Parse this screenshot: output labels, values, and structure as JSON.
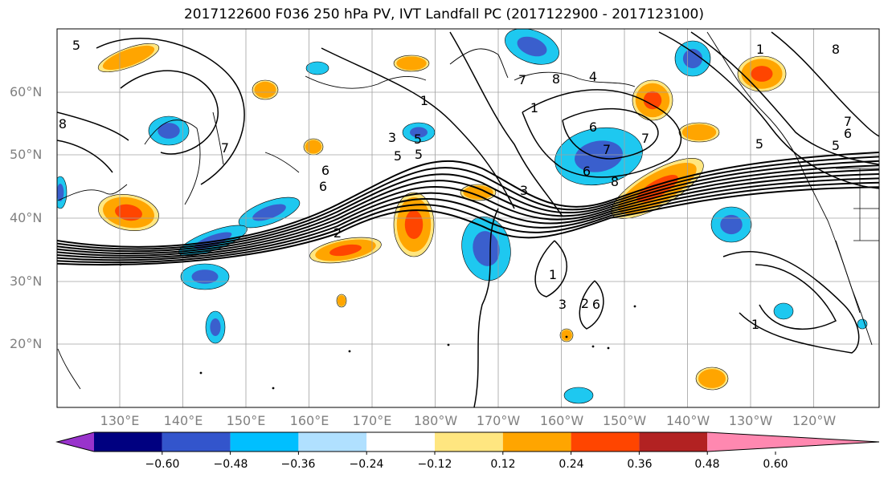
{
  "title": "2017122600 F036 250 hPa PV, IVT Landfall PC (2017122900 - 2017123100)",
  "lat_labels": [
    "60°N",
    "50°N",
    "40°N",
    "30°N",
    "20°N"
  ],
  "lon_labels": [
    "130°E",
    "140°E",
    "150°E",
    "160°E",
    "170°E",
    "180°W",
    "170°W",
    "160°W",
    "150°W",
    "140°W",
    "130°W",
    "120°W"
  ],
  "contour_labels": [
    "5",
    "8",
    "7",
    "6",
    "5",
    "1",
    "3",
    "5",
    "4",
    "6",
    "7",
    "8",
    "1",
    "7",
    "6",
    "5",
    "2",
    "3",
    "6",
    "7",
    "8",
    "3",
    "5",
    "1",
    "6",
    "7",
    "6",
    "5",
    "8",
    "1",
    "2",
    "1"
  ],
  "colorbar": {
    "ticks": [
      "−0.60",
      "−0.48",
      "−0.36",
      "−0.24",
      "−0.12",
      "0.12",
      "0.24",
      "0.36",
      "0.48",
      "0.60"
    ],
    "colors": [
      "#9933cc",
      "#000080",
      "#3355cc",
      "#00bfff",
      "#b0e0ff",
      "#ffffff",
      "#ffe680",
      "#ffa500",
      "#ff4500",
      "#b22222",
      "#ff88b0"
    ]
  },
  "colors": {
    "cyan": "#1ec8f0",
    "blue": "#3a5fcd",
    "yellow": "#ffe680",
    "orange": "#ffa500",
    "red": "#ff4500",
    "grid": "#a0a0a0"
  }
}
